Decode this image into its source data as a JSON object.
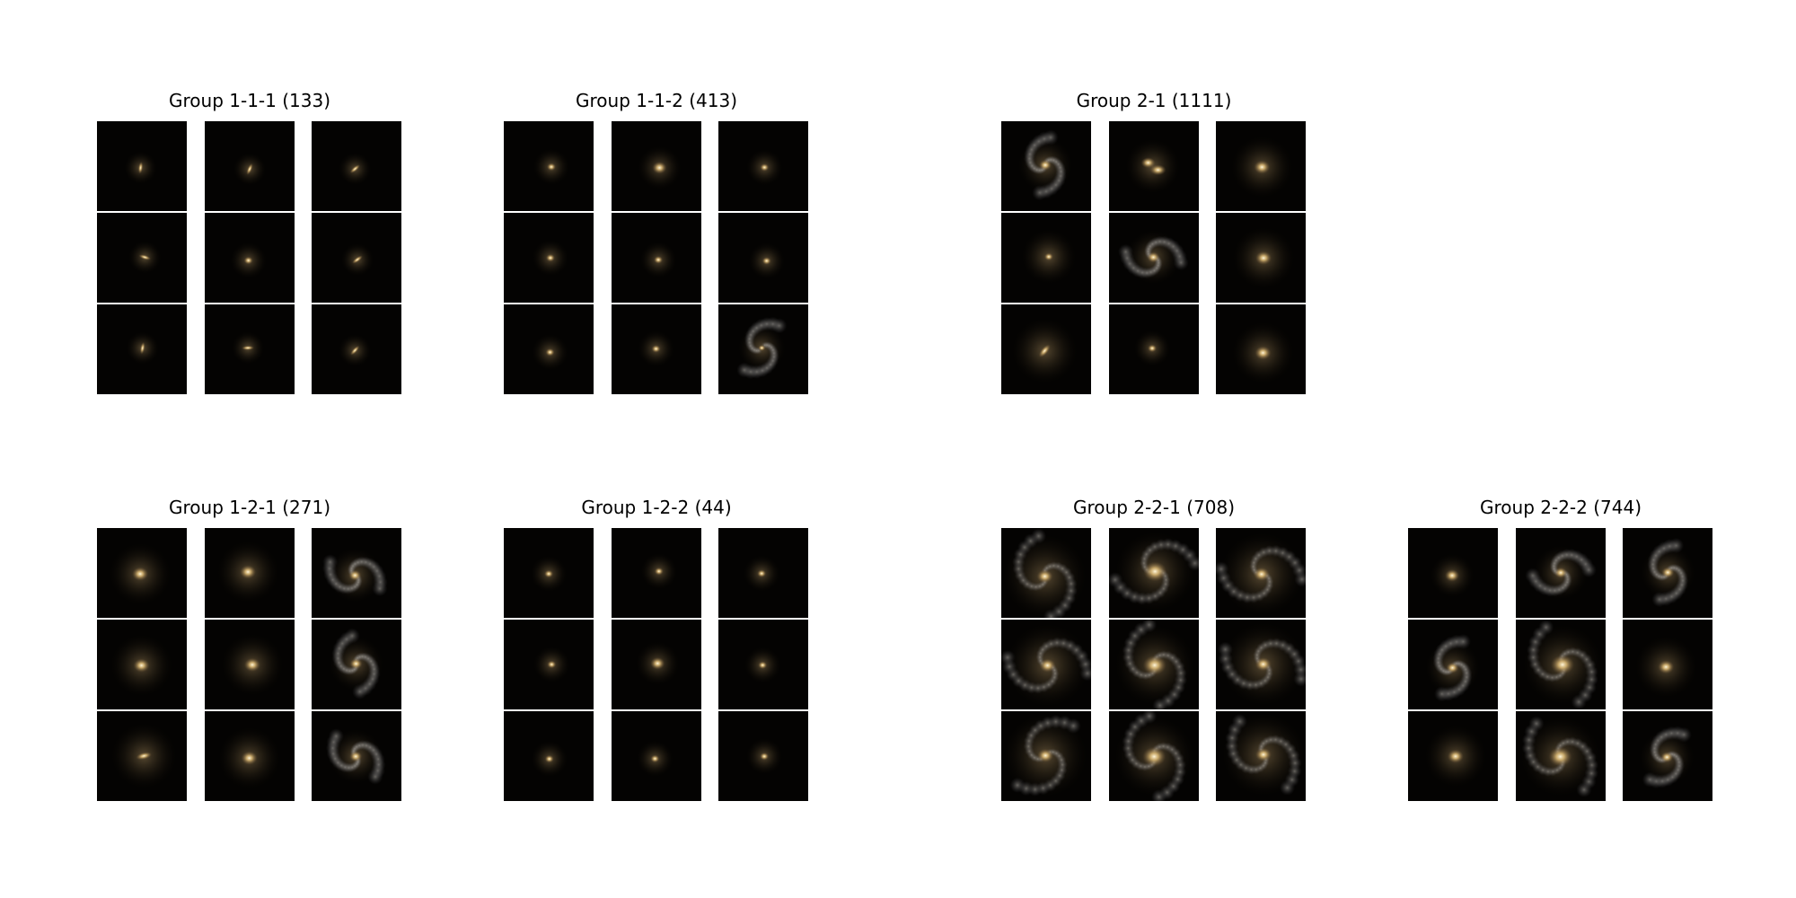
{
  "figure": {
    "groups": [
      {
        "id": "g111",
        "title": "Group 1-1-1 (133)",
        "row": 0,
        "col": 0,
        "thumbnails": [
          "edge-on",
          "edge-on",
          "edge-on",
          "edge-on",
          "compact",
          "edge-on",
          "edge-on",
          "edge-on",
          "edge-on"
        ]
      },
      {
        "id": "g112",
        "title": "Group 1-1-2 (413)",
        "row": 0,
        "col": 1,
        "thumbnails": [
          "compact",
          "elliptical",
          "compact",
          "compact",
          "compact",
          "compact",
          "compact",
          "compact",
          "faint-spiral"
        ]
      },
      {
        "id": "g21",
        "title": "Group 2-1 (1111)",
        "row": 0,
        "col": 2,
        "thumbnails": [
          "spiral",
          "merger",
          "diffuse",
          "compact-halo",
          "spiral",
          "diffuse",
          "disturbed",
          "compact",
          "diffuse"
        ]
      },
      {
        "id": "g121",
        "title": "Group 1-2-1 (271)",
        "row": 1,
        "col": 0,
        "thumbnails": [
          "diffuse",
          "diffuse",
          "spiral",
          "diffuse",
          "diffuse",
          "spiral",
          "disturbed",
          "diffuse",
          "spiral"
        ]
      },
      {
        "id": "g122",
        "title": "Group 1-2-2 (44)",
        "row": 1,
        "col": 1,
        "thumbnails": [
          "compact",
          "compact",
          "compact",
          "compact",
          "elliptical",
          "compact",
          "compact",
          "compact",
          "compact"
        ]
      },
      {
        "id": "g221",
        "title": "Group 2-2-1 (708)",
        "row": 1,
        "col": 2,
        "thumbnails": [
          "grand-spiral",
          "bright-spiral",
          "grand-spiral",
          "grand-spiral",
          "bright-spiral",
          "grand-spiral",
          "grand-spiral",
          "bright-spiral",
          "grand-spiral"
        ]
      },
      {
        "id": "g222",
        "title": "Group 2-2-2 (744)",
        "row": 1,
        "col": 3,
        "thumbnails": [
          "elliptical",
          "spiral",
          "spiral",
          "spiral",
          "bright-spiral",
          "diffuse",
          "diffuse",
          "bright-spiral",
          "spiral"
        ]
      }
    ]
  }
}
